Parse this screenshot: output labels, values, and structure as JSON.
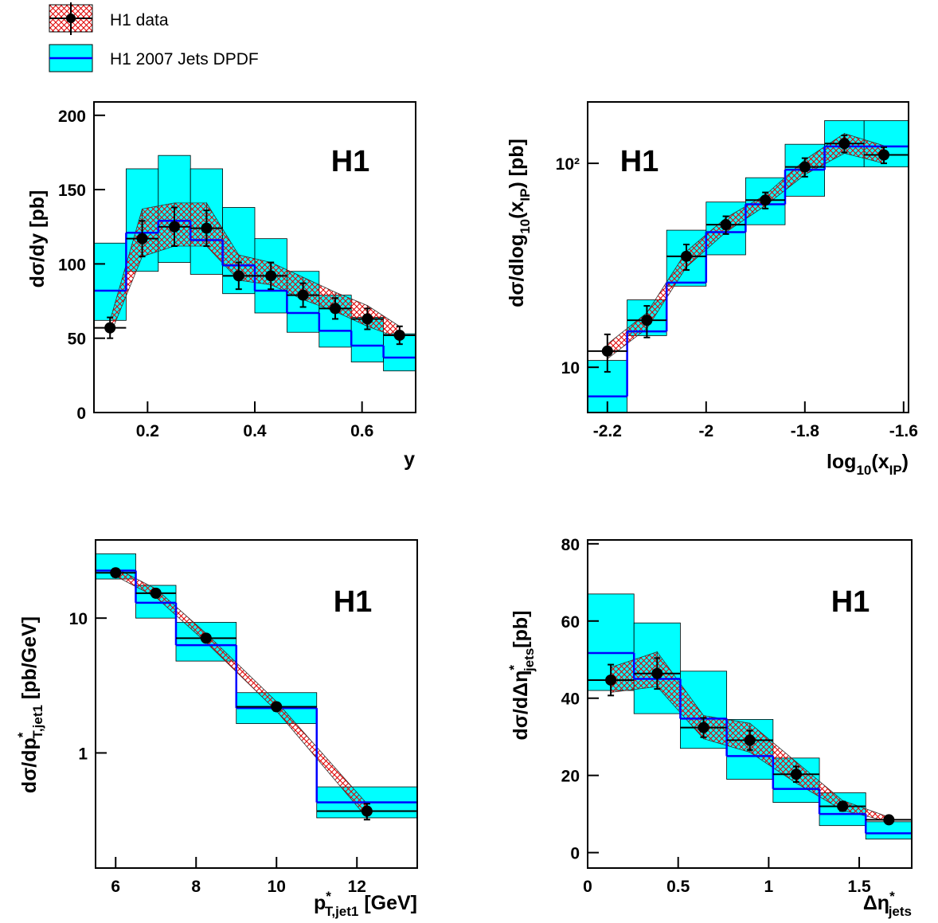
{
  "legend": [
    {
      "name": "H1 data",
      "color": "#e00000"
    },
    {
      "name": "H1 2007 Jets DPDF",
      "color": "#00ffff",
      "line_color": "#0000ff"
    }
  ],
  "chart_data": [
    {
      "type": "hist-comparison",
      "annotation": "H1",
      "xlabel": [
        {
          "text": "y"
        }
      ],
      "ylabel": [
        {
          "text": "dσ/dy  [pb]"
        }
      ],
      "xlim": [
        0.1,
        0.7
      ],
      "xticks": [
        0.2,
        0.4,
        0.6
      ],
      "ylim": [
        0,
        209
      ],
      "yticks": [
        0,
        50,
        100,
        150,
        200
      ],
      "log": false,
      "bins": [
        0.1,
        0.16,
        0.22,
        0.28,
        0.34,
        0.4,
        0.46,
        0.52,
        0.58,
        0.64,
        0.7
      ],
      "data": {
        "x": [
          0.13,
          0.19,
          0.25,
          0.31,
          0.37,
          0.43,
          0.49,
          0.55,
          0.61,
          0.67
        ],
        "values": [
          57,
          117,
          125,
          124,
          92,
          92,
          79,
          70,
          63,
          52
        ],
        "errors": [
          7,
          12,
          13,
          12,
          9,
          9,
          8,
          7,
          7,
          6
        ],
        "band_low": [
          52,
          105,
          112,
          112,
          89,
          86,
          76,
          68,
          58,
          50
        ],
        "band_high": [
          62,
          137,
          141,
          141,
          106,
          101,
          91,
          81,
          72,
          58
        ]
      },
      "model": {
        "values": [
          82,
          121,
          129,
          116,
          99,
          82,
          67,
          55,
          45,
          37
        ],
        "band_low": [
          62,
          95,
          101,
          93,
          80,
          67,
          54,
          44,
          34,
          28
        ],
        "band_high": [
          114,
          164,
          173,
          164,
          138,
          117,
          95,
          79,
          64,
          53
        ]
      }
    },
    {
      "type": "hist-comparison",
      "annotation": "H1",
      "xlabel": [
        {
          "text": "log"
        },
        {
          "text": "10",
          "pos": "sub"
        },
        {
          "text": "(x"
        },
        {
          "text": "IP",
          "pos": "sub"
        },
        {
          "text": ")"
        }
      ],
      "ylabel": [
        {
          "text": "dσ/dlog"
        },
        {
          "text": "10",
          "pos": "sub"
        },
        {
          "text": "(x"
        },
        {
          "text": "IP",
          "pos": "sub"
        },
        {
          "text": ")   [pb]"
        }
      ],
      "xlim": [
        -2.24,
        -1.59
      ],
      "xticks": [
        -2.2,
        -2,
        -1.8,
        -1.6
      ],
      "ylim": [
        6,
        200
      ],
      "yticks": [
        10,
        {
          "value": 100,
          "label": "10²"
        }
      ],
      "log": true,
      "bins": [
        -2.24,
        -2.16,
        -2.08,
        -2,
        -1.92,
        -1.84,
        -1.76,
        -1.68,
        -1.59
      ],
      "data": {
        "x": [
          -2.2,
          -2.12,
          -2.04,
          -1.96,
          -1.88,
          -1.8,
          -1.72,
          -1.64
        ],
        "values": [
          12,
          17,
          35,
          50,
          66,
          96,
          125,
          110
        ],
        "errors": [
          2.5,
          3,
          5,
          5,
          6,
          10,
          12,
          10
        ],
        "band_low": [
          11,
          15.5,
          31,
          46,
          62,
          88,
          112,
          100
        ],
        "band_high": [
          13,
          18.5,
          37,
          54,
          70,
          104,
          140,
          122
        ]
      },
      "model": {
        "values": [
          7.2,
          15,
          26,
          46,
          63,
          93,
          121,
          121
        ],
        "band_low": [
          6,
          14.3,
          25,
          35.6,
          50,
          69,
          96,
          96
        ],
        "band_high": [
          10.8,
          21.4,
          47,
          64.6,
          85,
          124,
          162,
          162
        ]
      }
    },
    {
      "type": "hist-comparison",
      "annotation": "H1",
      "xlabel": [
        {
          "text": "p"
        },
        {
          "text": "*",
          "pos": "sup"
        },
        {
          "text": "T,jet1",
          "pos": "sub"
        },
        {
          "text": " [GeV]"
        }
      ],
      "ylabel": [
        {
          "text": "dσ/dp"
        },
        {
          "text": "*",
          "pos": "sup"
        },
        {
          "text": "T,jet1",
          "pos": "sub"
        },
        {
          "text": "  [pb/GeV]"
        }
      ],
      "xlim": [
        5.5,
        13.5
      ],
      "xticks": [
        6,
        8,
        10,
        12
      ],
      "ylim": [
        0.14,
        38
      ],
      "yticks": [
        1,
        10
      ],
      "log": true,
      "bins": [
        5.5,
        6.5,
        7.5,
        9,
        11,
        13.5
      ],
      "data": {
        "x": [
          6,
          7,
          8.25,
          10,
          12.25
        ],
        "values": [
          21.7,
          15.3,
          7.1,
          2.2,
          0.37
        ],
        "errors": [
          1.5,
          1,
          0.4,
          0.15,
          0.05
        ],
        "band_low": [
          20.5,
          14.3,
          6.6,
          2.05,
          0.33
        ],
        "band_high": [
          23.5,
          16.5,
          7.7,
          2.4,
          0.42
        ]
      },
      "model": {
        "values": [
          22.5,
          13,
          6.3,
          2.15,
          0.43
        ],
        "band_low": [
          19.5,
          10,
          4.8,
          1.65,
          0.33
        ],
        "band_high": [
          30,
          17.5,
          9.3,
          2.8,
          0.56
        ]
      }
    },
    {
      "type": "hist-comparison",
      "annotation": "H1",
      "xlabel": [
        {
          "text": "Δη"
        },
        {
          "text": "*",
          "pos": "sup"
        },
        {
          "text": "jets",
          "pos": "sub"
        }
      ],
      "ylabel": [
        {
          "text": "dσ/dΔη"
        },
        {
          "text": "*",
          "pos": "sup"
        },
        {
          "text": "jets",
          "pos": "sub"
        },
        {
          "text": "[pb]"
        }
      ],
      "xlim": [
        0,
        1.79
      ],
      "xticks": [
        0,
        0.5,
        1,
        1.5
      ],
      "ylim": [
        -4,
        81
      ],
      "yticks": [
        0,
        20,
        40,
        60,
        80
      ],
      "log": false,
      "bins": [
        0,
        0.256,
        0.512,
        0.768,
        1.024,
        1.28,
        1.536,
        1.79
      ],
      "data": {
        "x": [
          0.128,
          0.384,
          0.64,
          0.896,
          1.152,
          1.408,
          1.664
        ],
        "values": [
          44.7,
          46.4,
          32.4,
          29.1,
          20.3,
          12,
          8.5
        ],
        "errors": [
          4,
          4,
          2.5,
          2.5,
          2,
          1.2,
          0.8
        ],
        "band_low": [
          41.5,
          43,
          29.5,
          26,
          18,
          11,
          8
        ],
        "band_high": [
          48,
          52,
          35.5,
          33.5,
          23.5,
          13.5,
          9.2
        ]
      },
      "model": {
        "values": [
          51.7,
          45,
          34.7,
          25,
          16.5,
          10,
          5
        ],
        "band_low": [
          42,
          36,
          27,
          19,
          13,
          7,
          3.5
        ],
        "band_high": [
          67,
          59.5,
          47,
          34.5,
          24.5,
          15.5,
          8
        ]
      }
    }
  ]
}
